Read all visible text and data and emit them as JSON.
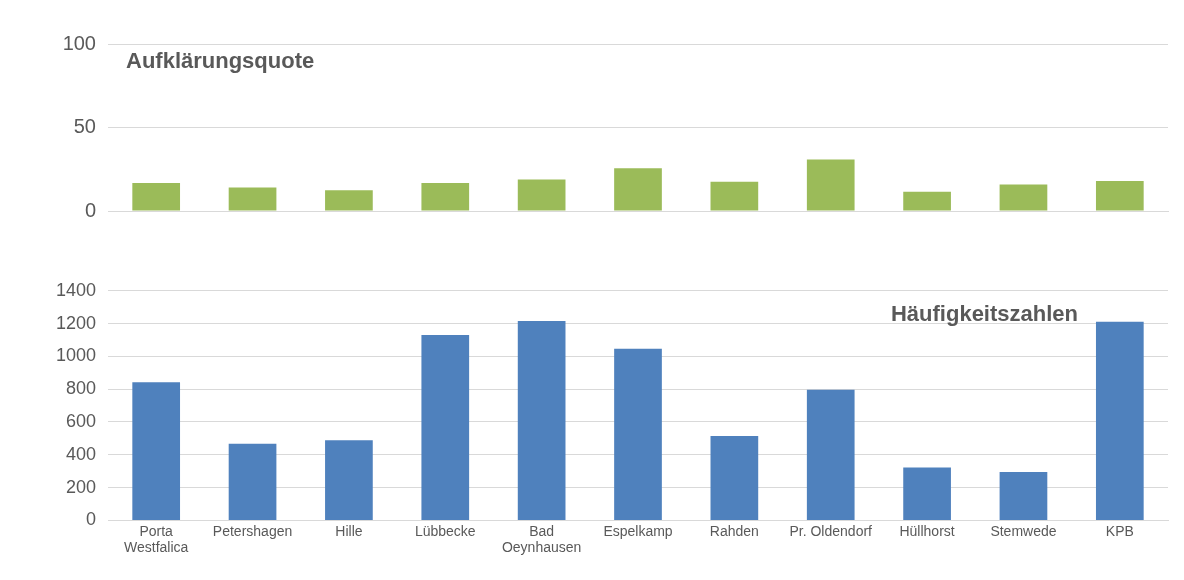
{
  "chart_data": [
    {
      "type": "bar",
      "title": "Aufklärungsquote",
      "categories": [
        null,
        null,
        null,
        null,
        null,
        null,
        null,
        null,
        null,
        null,
        null
      ],
      "values": [
        16.7,
        14.1,
        12.4,
        16.7,
        18.8,
        25.6,
        17.5,
        30.8,
        11.5,
        15.8,
        17.9
      ],
      "color": "#9bbb59",
      "ylim": [
        0,
        100
      ],
      "yticks": [
        0,
        50,
        100
      ],
      "grid": "y",
      "tick_labels": "y"
    },
    {
      "type": "bar",
      "title": "Häufigkeitszahlen",
      "categories": [
        "Porta Westfalica",
        "Petershagen",
        "Hille",
        "Lübbecke",
        "Bad Oeynhausen",
        "Espelkamp",
        "Rahden",
        "Pr. Oldendorf",
        "Hüllhorst",
        "Stemwede",
        "KPB"
      ],
      "values": [
        843,
        468,
        488,
        1130,
        1216,
        1047,
        515,
        797,
        323,
        295,
        1212
      ],
      "color": "#4f81bd",
      "ylim": [
        0,
        1400
      ],
      "yticks": [
        0,
        200,
        400,
        600,
        800,
        1000,
        1200,
        1400
      ],
      "grid": "y"
    }
  ]
}
